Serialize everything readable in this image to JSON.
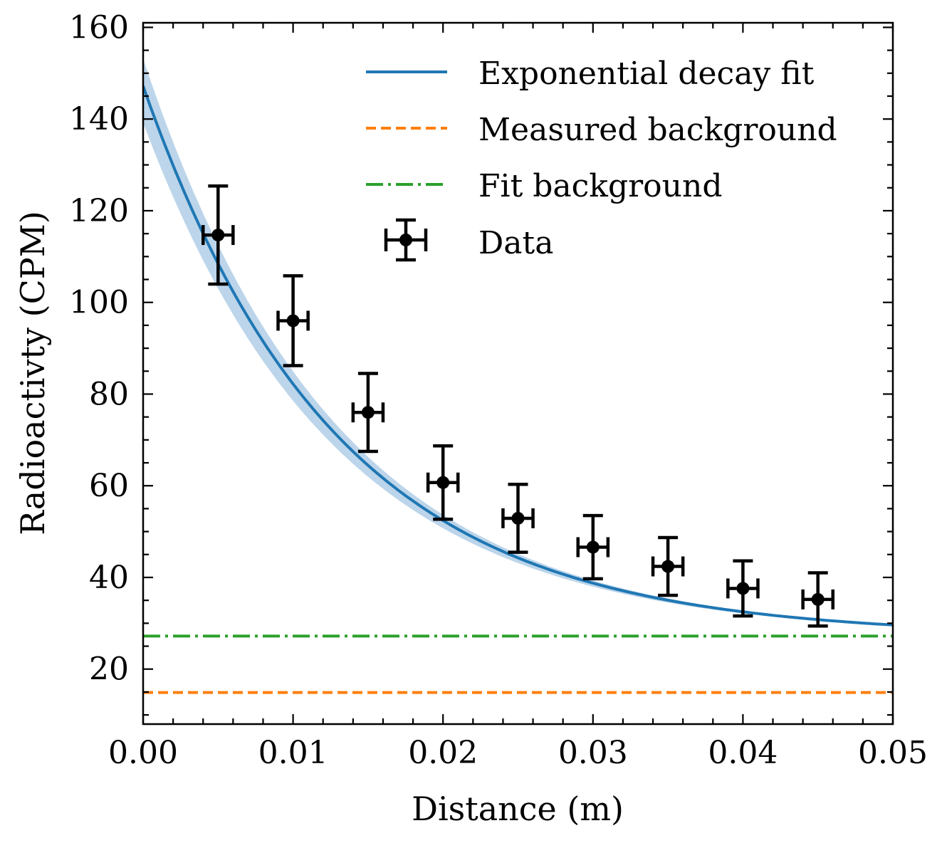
{
  "chart_data": {
    "type": "scatter",
    "xlabel": "Distance (m)",
    "ylabel": "Radioactivty (CPM)",
    "xlim": [
      0.0,
      0.05
    ],
    "ylim": [
      8,
      161
    ],
    "x_ticks": [
      0.0,
      0.01,
      0.02,
      0.03,
      0.04,
      0.05
    ],
    "x_tick_labels": [
      "0.00",
      "0.01",
      "0.02",
      "0.03",
      "0.04",
      "0.05"
    ],
    "y_ticks": [
      20,
      40,
      60,
      80,
      100,
      120,
      140,
      160
    ],
    "y_tick_labels": [
      "20",
      "40",
      "60",
      "80",
      "100",
      "120",
      "140",
      "160"
    ],
    "grid": false,
    "legend_position": "top-right",
    "series": [
      {
        "name": "Exponential decay fit",
        "kind": "line",
        "color": "#1f77b4",
        "model": {
          "amplitude": 120,
          "decay_rate": 78,
          "offset": 27.2
        },
        "band": {
          "lower_amplitude": 112,
          "upper_amplitude": 126,
          "color": "#bcd5ea"
        }
      },
      {
        "name": "Measured background",
        "kind": "hline",
        "style": "dashed",
        "color": "#ff7f0e",
        "y": 14.9
      },
      {
        "name": "Fit background",
        "kind": "hline",
        "style": "dashdot",
        "color": "#2ca02c",
        "y": 27.2
      },
      {
        "name": "Data",
        "kind": "errorbar",
        "color": "#000000",
        "x": [
          0.005,
          0.01,
          0.015,
          0.02,
          0.025,
          0.03,
          0.035,
          0.04,
          0.045
        ],
        "y": [
          114.7,
          96.0,
          76.0,
          60.7,
          52.9,
          46.6,
          42.4,
          37.6,
          35.2
        ],
        "y_err": [
          10.7,
          9.8,
          8.5,
          8.0,
          7.4,
          6.9,
          6.3,
          6.0,
          5.8
        ],
        "x_err": [
          0.001,
          0.001,
          0.001,
          0.001,
          0.001,
          0.001,
          0.001,
          0.001,
          0.001
        ]
      }
    ]
  }
}
